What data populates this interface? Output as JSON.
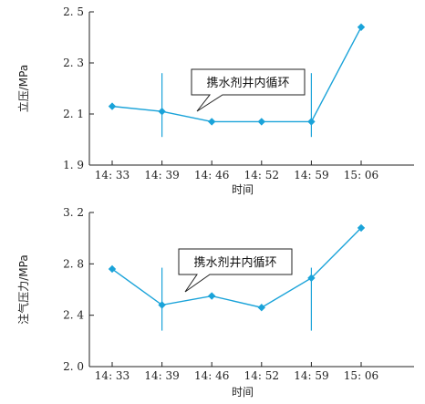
{
  "chart_data": [
    {
      "type": "line",
      "title": "",
      "xlabel": "时间",
      "ylabel": "立压/MPa",
      "categories": [
        "14: 33",
        "14: 39",
        "14: 46",
        "14: 52",
        "14: 59",
        "15: 06"
      ],
      "series": [
        {
          "values": [
            2.13,
            2.11,
            2.07,
            2.07,
            2.07,
            2.44
          ]
        }
      ],
      "ylim": [
        1.9,
        2.5
      ],
      "yticks": [
        "1. 9",
        "2. 1",
        "2. 3",
        "2. 5"
      ],
      "ytick_values": [
        1.9,
        2.1,
        2.3,
        2.5
      ],
      "annotation": "携水剂井内循环",
      "marker_lines": [
        {
          "category": "14: 39",
          "y_from": 2.01,
          "y_to": 2.26
        },
        {
          "category": "14: 59",
          "y_from": 2.01,
          "y_to": 2.26
        }
      ],
      "color": "#1aa3d9",
      "grid": false
    },
    {
      "type": "line",
      "title": "",
      "xlabel": "时间",
      "ylabel": "注气压力/MPa",
      "categories": [
        "14: 33",
        "14: 39",
        "14: 46",
        "14: 52",
        "14: 59",
        "15: 06"
      ],
      "series": [
        {
          "values": [
            2.76,
            2.48,
            2.55,
            2.46,
            2.69,
            3.08
          ]
        }
      ],
      "ylim": [
        2.0,
        3.2
      ],
      "yticks": [
        "2. 0",
        "2. 4",
        "2. 8",
        "3. 2"
      ],
      "ytick_values": [
        2.0,
        2.4,
        2.8,
        3.2
      ],
      "annotation": "携水剂井内循环",
      "marker_lines": [
        {
          "category": "14: 39",
          "y_from": 2.28,
          "y_to": 2.77
        },
        {
          "category": "14: 59",
          "y_from": 2.28,
          "y_to": 2.77
        }
      ],
      "color": "#1aa3d9",
      "grid": false
    }
  ]
}
